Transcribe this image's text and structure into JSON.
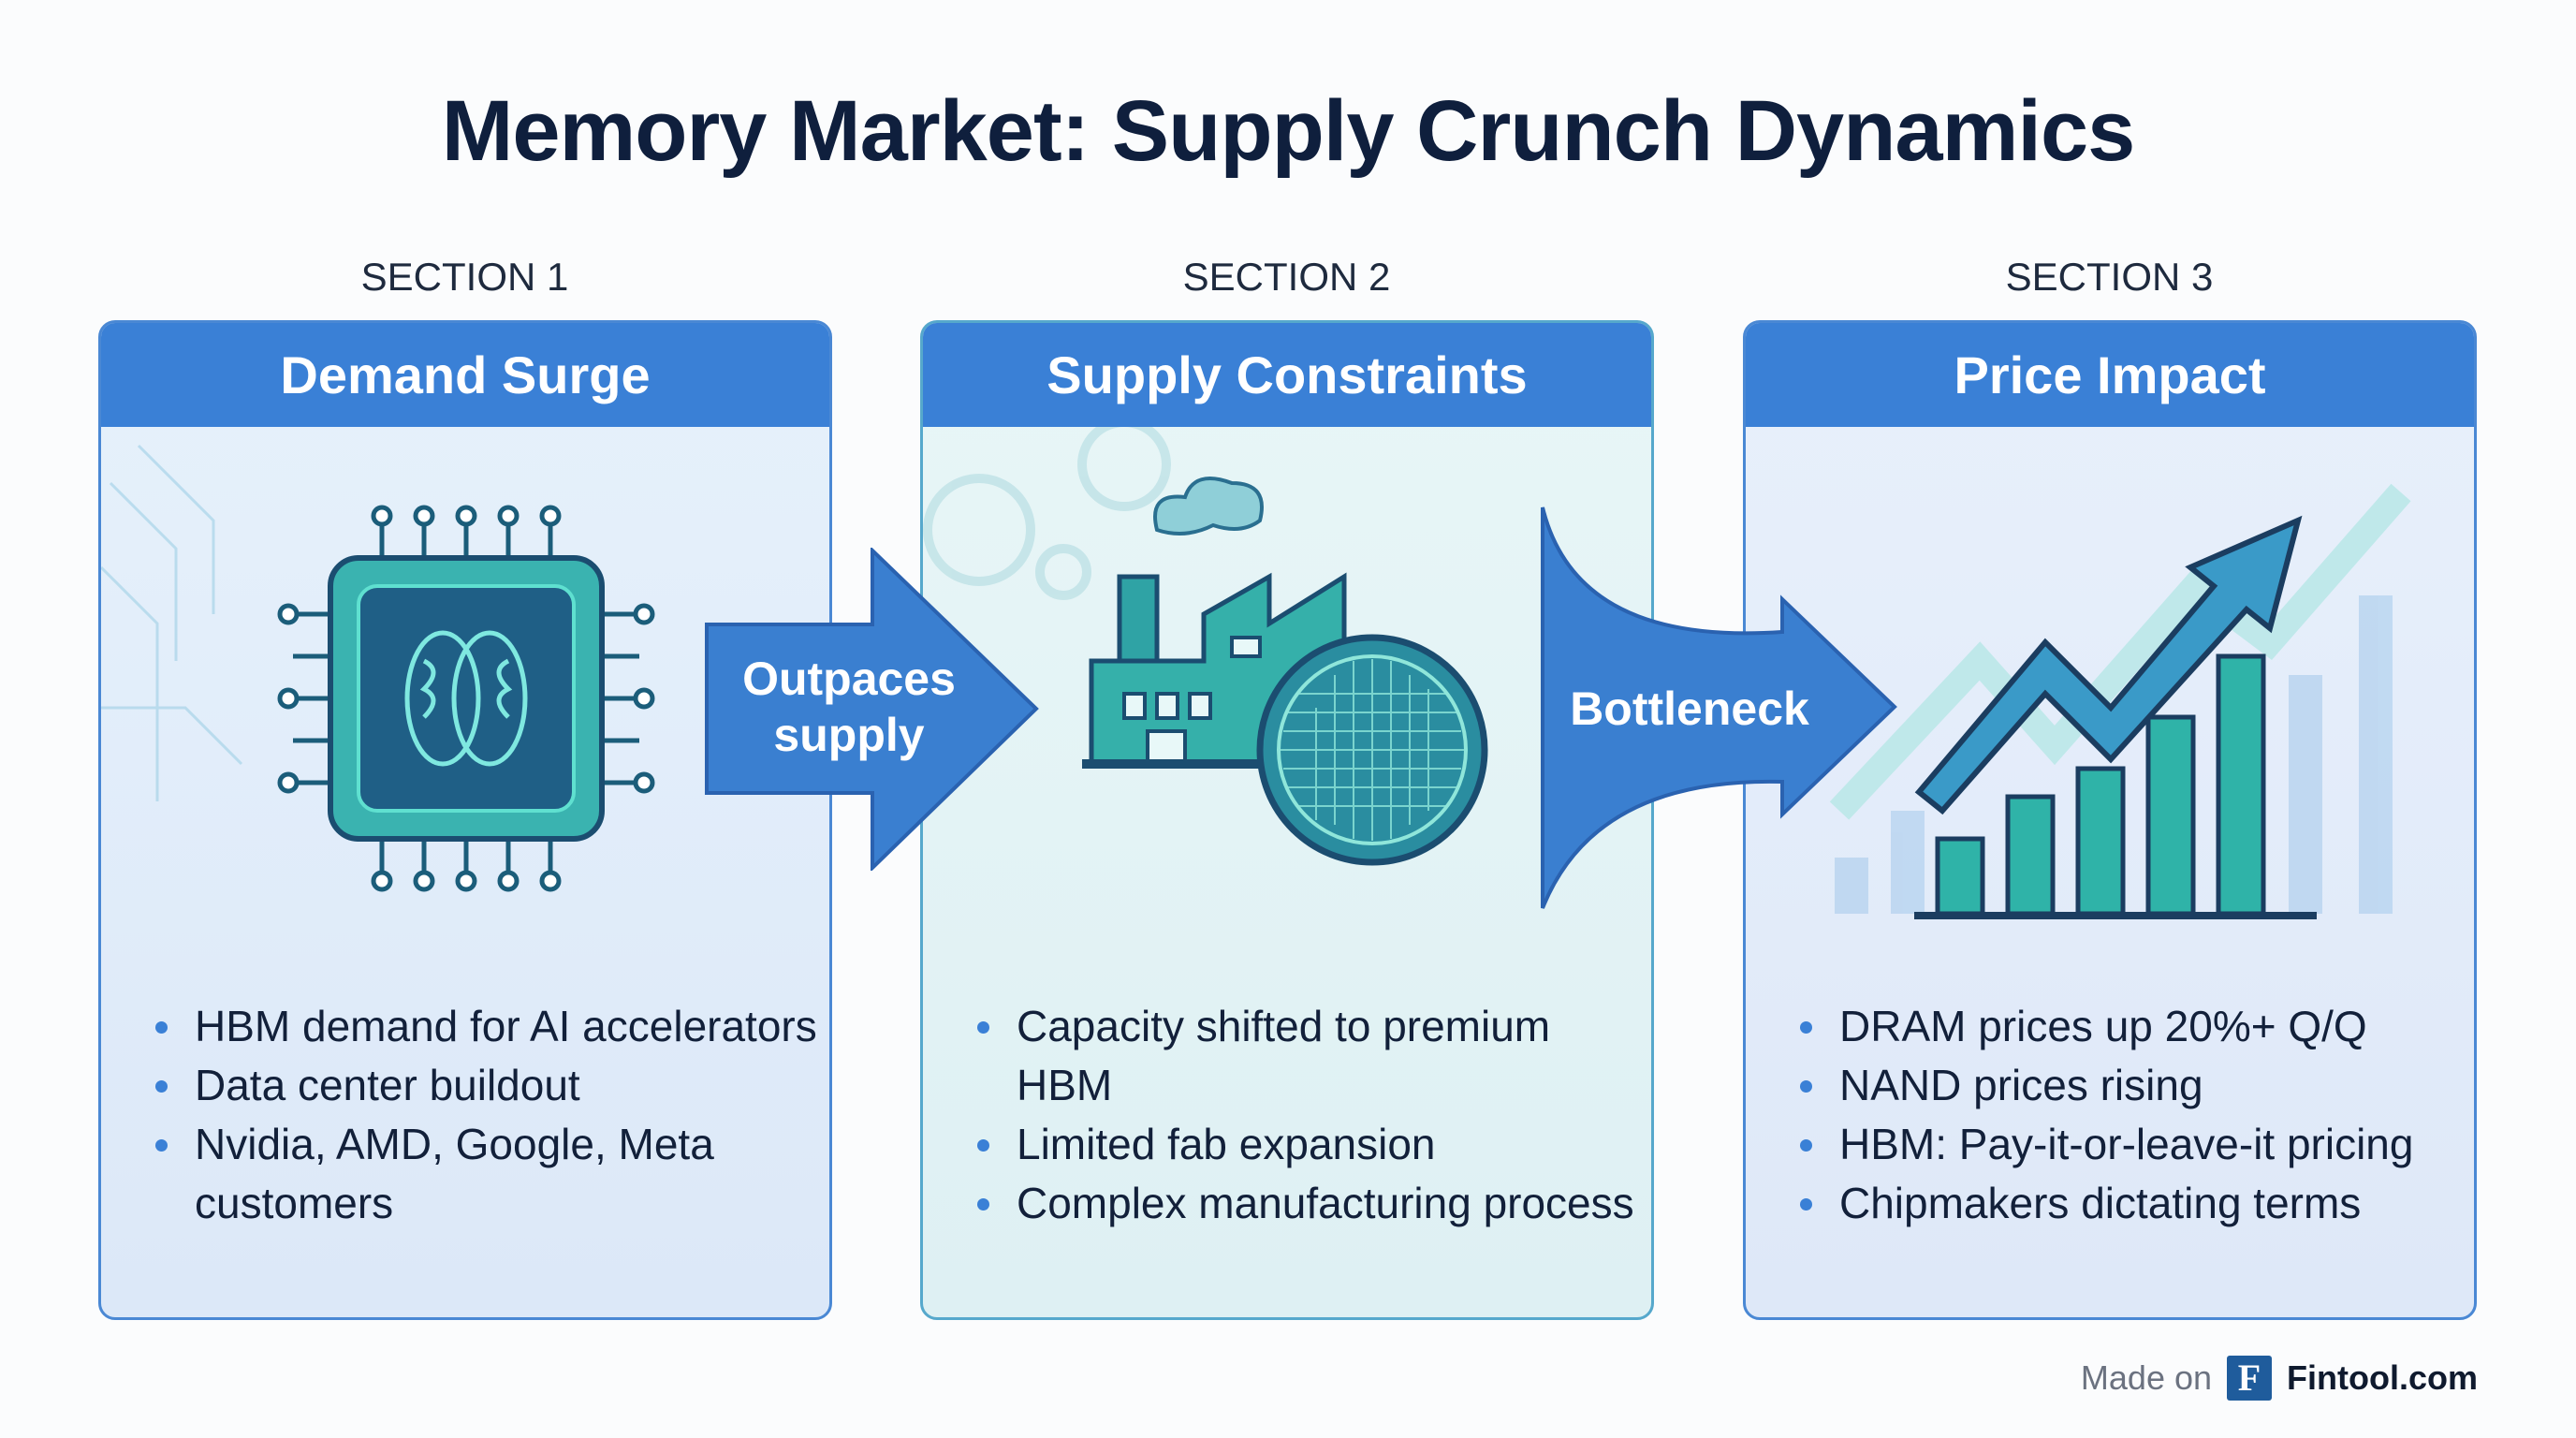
{
  "title": "Memory Market: Supply Crunch Dynamics",
  "colors": {
    "header": "#3a80d6",
    "title": "#0f1f3d",
    "accent_teal": "#3cc7b0"
  },
  "sections": [
    {
      "label": "SECTION 1",
      "heading": "Demand Surge",
      "icon": "ai-chip-brain-icon",
      "bullets": [
        "HBM demand for AI accelerators",
        "Data center buildout",
        "Nvidia, AMD, Google, Meta customers"
      ]
    },
    {
      "label": "SECTION 2",
      "heading": "Supply Constraints",
      "icon": "factory-wafer-icon",
      "bullets": [
        "Capacity shifted to premium HBM",
        "Limited fab expansion",
        "Complex manufacturing process"
      ]
    },
    {
      "label": "SECTION 3",
      "heading": "Price Impact",
      "icon": "rising-bar-chart-icon",
      "bullets": [
        "DRAM prices up 20%+ Q/Q",
        "NAND prices rising",
        "HBM: Pay-it-or-leave-it pricing",
        "Chipmakers dictating terms"
      ]
    }
  ],
  "arrows": [
    {
      "label": "Outpaces supply"
    },
    {
      "label": "Bottleneck"
    }
  ],
  "footer": {
    "made_on": "Made on",
    "logo_letter": "F",
    "brand": "Fintool.com"
  }
}
